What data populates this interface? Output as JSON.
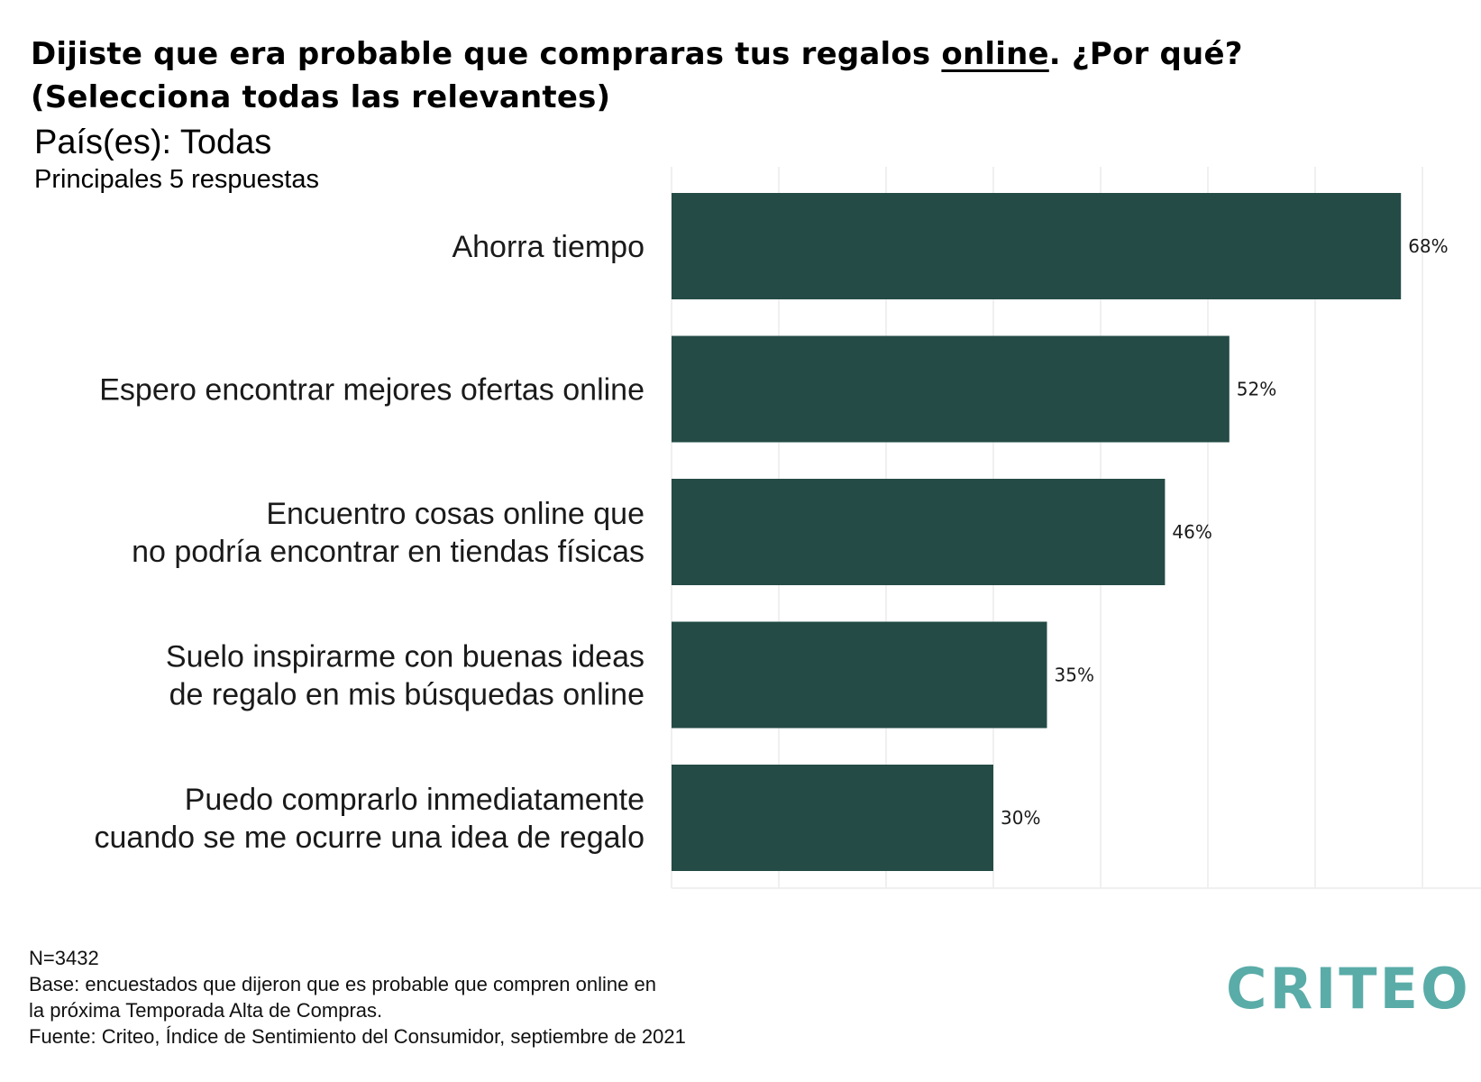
{
  "header": {
    "title_before": "Dijiste que era probable que compraras tus regalos ",
    "title_underlined": "online",
    "title_after": ". ¿Por qué?",
    "title_line2": "(Selecciona todas las relevantes)",
    "subtitle": "País(es): Todas",
    "subtitle2": "Principales 5 respuestas"
  },
  "chart_data": {
    "type": "bar",
    "orientation": "horizontal",
    "categories": [
      [
        "Ahorra tiempo"
      ],
      [
        "Espero encontrar mejores ofertas online"
      ],
      [
        "Encuentro cosas online que",
        "no podría encontrar en tiendas físicas"
      ],
      [
        "Suelo inspirarme con buenas ideas",
        "de regalo en mis búsquedas online"
      ],
      [
        "Puedo comprarlo inmediatamente",
        "cuando se me ocurre una idea de regalo"
      ]
    ],
    "values": [
      68,
      52,
      46,
      35,
      30
    ],
    "value_labels": [
      "68%",
      "52%",
      "46%",
      "35%",
      "30%"
    ],
    "xlim": [
      0,
      75
    ],
    "gridlines": [
      0,
      10,
      20,
      30,
      40,
      50,
      60,
      70
    ],
    "grid": true,
    "bar_color": "#244b45",
    "grid_color": "#ececec"
  },
  "notes": {
    "line1": "N=3432",
    "line2": "Base: encuestados que dijeron que es probable que compren online en",
    "line3": "la próxima Temporada Alta de Compras.",
    "line4": "Fuente: Criteo, Índice de Sentimiento del Consumidor, septiembre de 2021"
  },
  "logo": {
    "text": "CRITEO",
    "color": "#5aaca8"
  }
}
